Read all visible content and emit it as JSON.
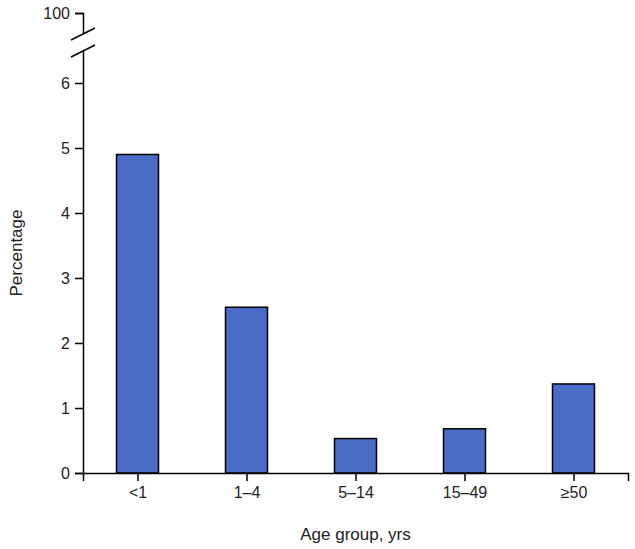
{
  "chart_data": {
    "type": "bar",
    "x_label": "Age group, yrs",
    "y_label": "Percentage",
    "categories": [
      "<1",
      "1–4",
      "5–14",
      "15–49",
      "≥50"
    ],
    "values": [
      4.9,
      2.55,
      0.53,
      0.68,
      1.37
    ],
    "color": "#4a6cc7",
    "ylim": [
      0,
      100
    ],
    "yticks": [
      0,
      1,
      2,
      3,
      4,
      5,
      6,
      100
    ],
    "grid": false
  }
}
